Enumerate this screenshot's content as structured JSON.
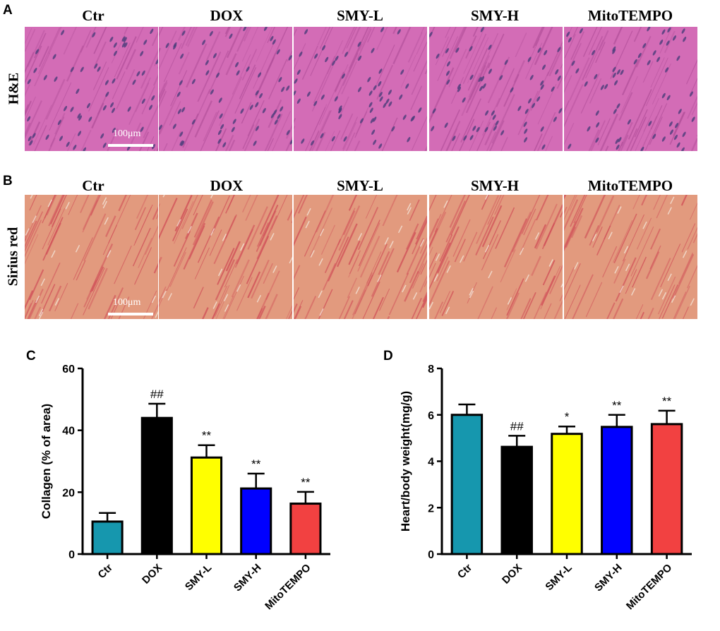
{
  "panels": {
    "A": {
      "letter": "A",
      "row_label": "H&E",
      "scale_label": "100μm"
    },
    "B": {
      "letter": "B",
      "row_label": "Sirius red",
      "scale_label": "100μm"
    },
    "C": {
      "letter": "C"
    },
    "D": {
      "letter": "D"
    }
  },
  "groups": [
    "Ctr",
    "DOX",
    "SMY-L",
    "SMY-H",
    "MitoTEMPO"
  ],
  "colors": {
    "Ctr": "#1697ae",
    "DOX": "#000000",
    "SMY-L": "#ffff00",
    "SMY-H": "#0000ff",
    "MitoTEMPO": "#f24141",
    "he_base": "#d36cb6",
    "he_fiber": "#b24f9a",
    "he_nucleus": "#4a3d7a",
    "sr_base": "#e29a7e",
    "sr_fiber": "#cf4a55"
  },
  "chart_data": [
    {
      "type": "bar",
      "categories": [
        "Ctr",
        "DOX",
        "SMY-L",
        "SMY-H",
        "MitoTEMPO"
      ],
      "values": [
        10.5,
        44.0,
        31.2,
        21.2,
        16.3
      ],
      "errors": [
        2.8,
        4.6,
        4.0,
        4.8,
        3.8
      ],
      "annotations": [
        "",
        "##",
        "**",
        "**",
        "**"
      ],
      "title": "",
      "xlabel": "",
      "ylabel": "Collagen (% of area)",
      "ylim": [
        0,
        60
      ],
      "yticks": [
        0,
        20,
        40,
        60
      ],
      "grid": false
    },
    {
      "type": "bar",
      "categories": [
        "Ctr",
        "DOX",
        "SMY-L",
        "SMY-H",
        "MitoTEMPO"
      ],
      "values": [
        6.0,
        4.62,
        5.18,
        5.48,
        5.6
      ],
      "errors": [
        0.45,
        0.48,
        0.32,
        0.52,
        0.58
      ],
      "annotations": [
        "",
        "##",
        "*",
        "**",
        "**"
      ],
      "title": "",
      "xlabel": "",
      "ylabel": "Heart/body weight(mg/g)",
      "ylim": [
        0,
        8
      ],
      "yticks": [
        0,
        2,
        4,
        6,
        8
      ],
      "grid": false
    }
  ]
}
